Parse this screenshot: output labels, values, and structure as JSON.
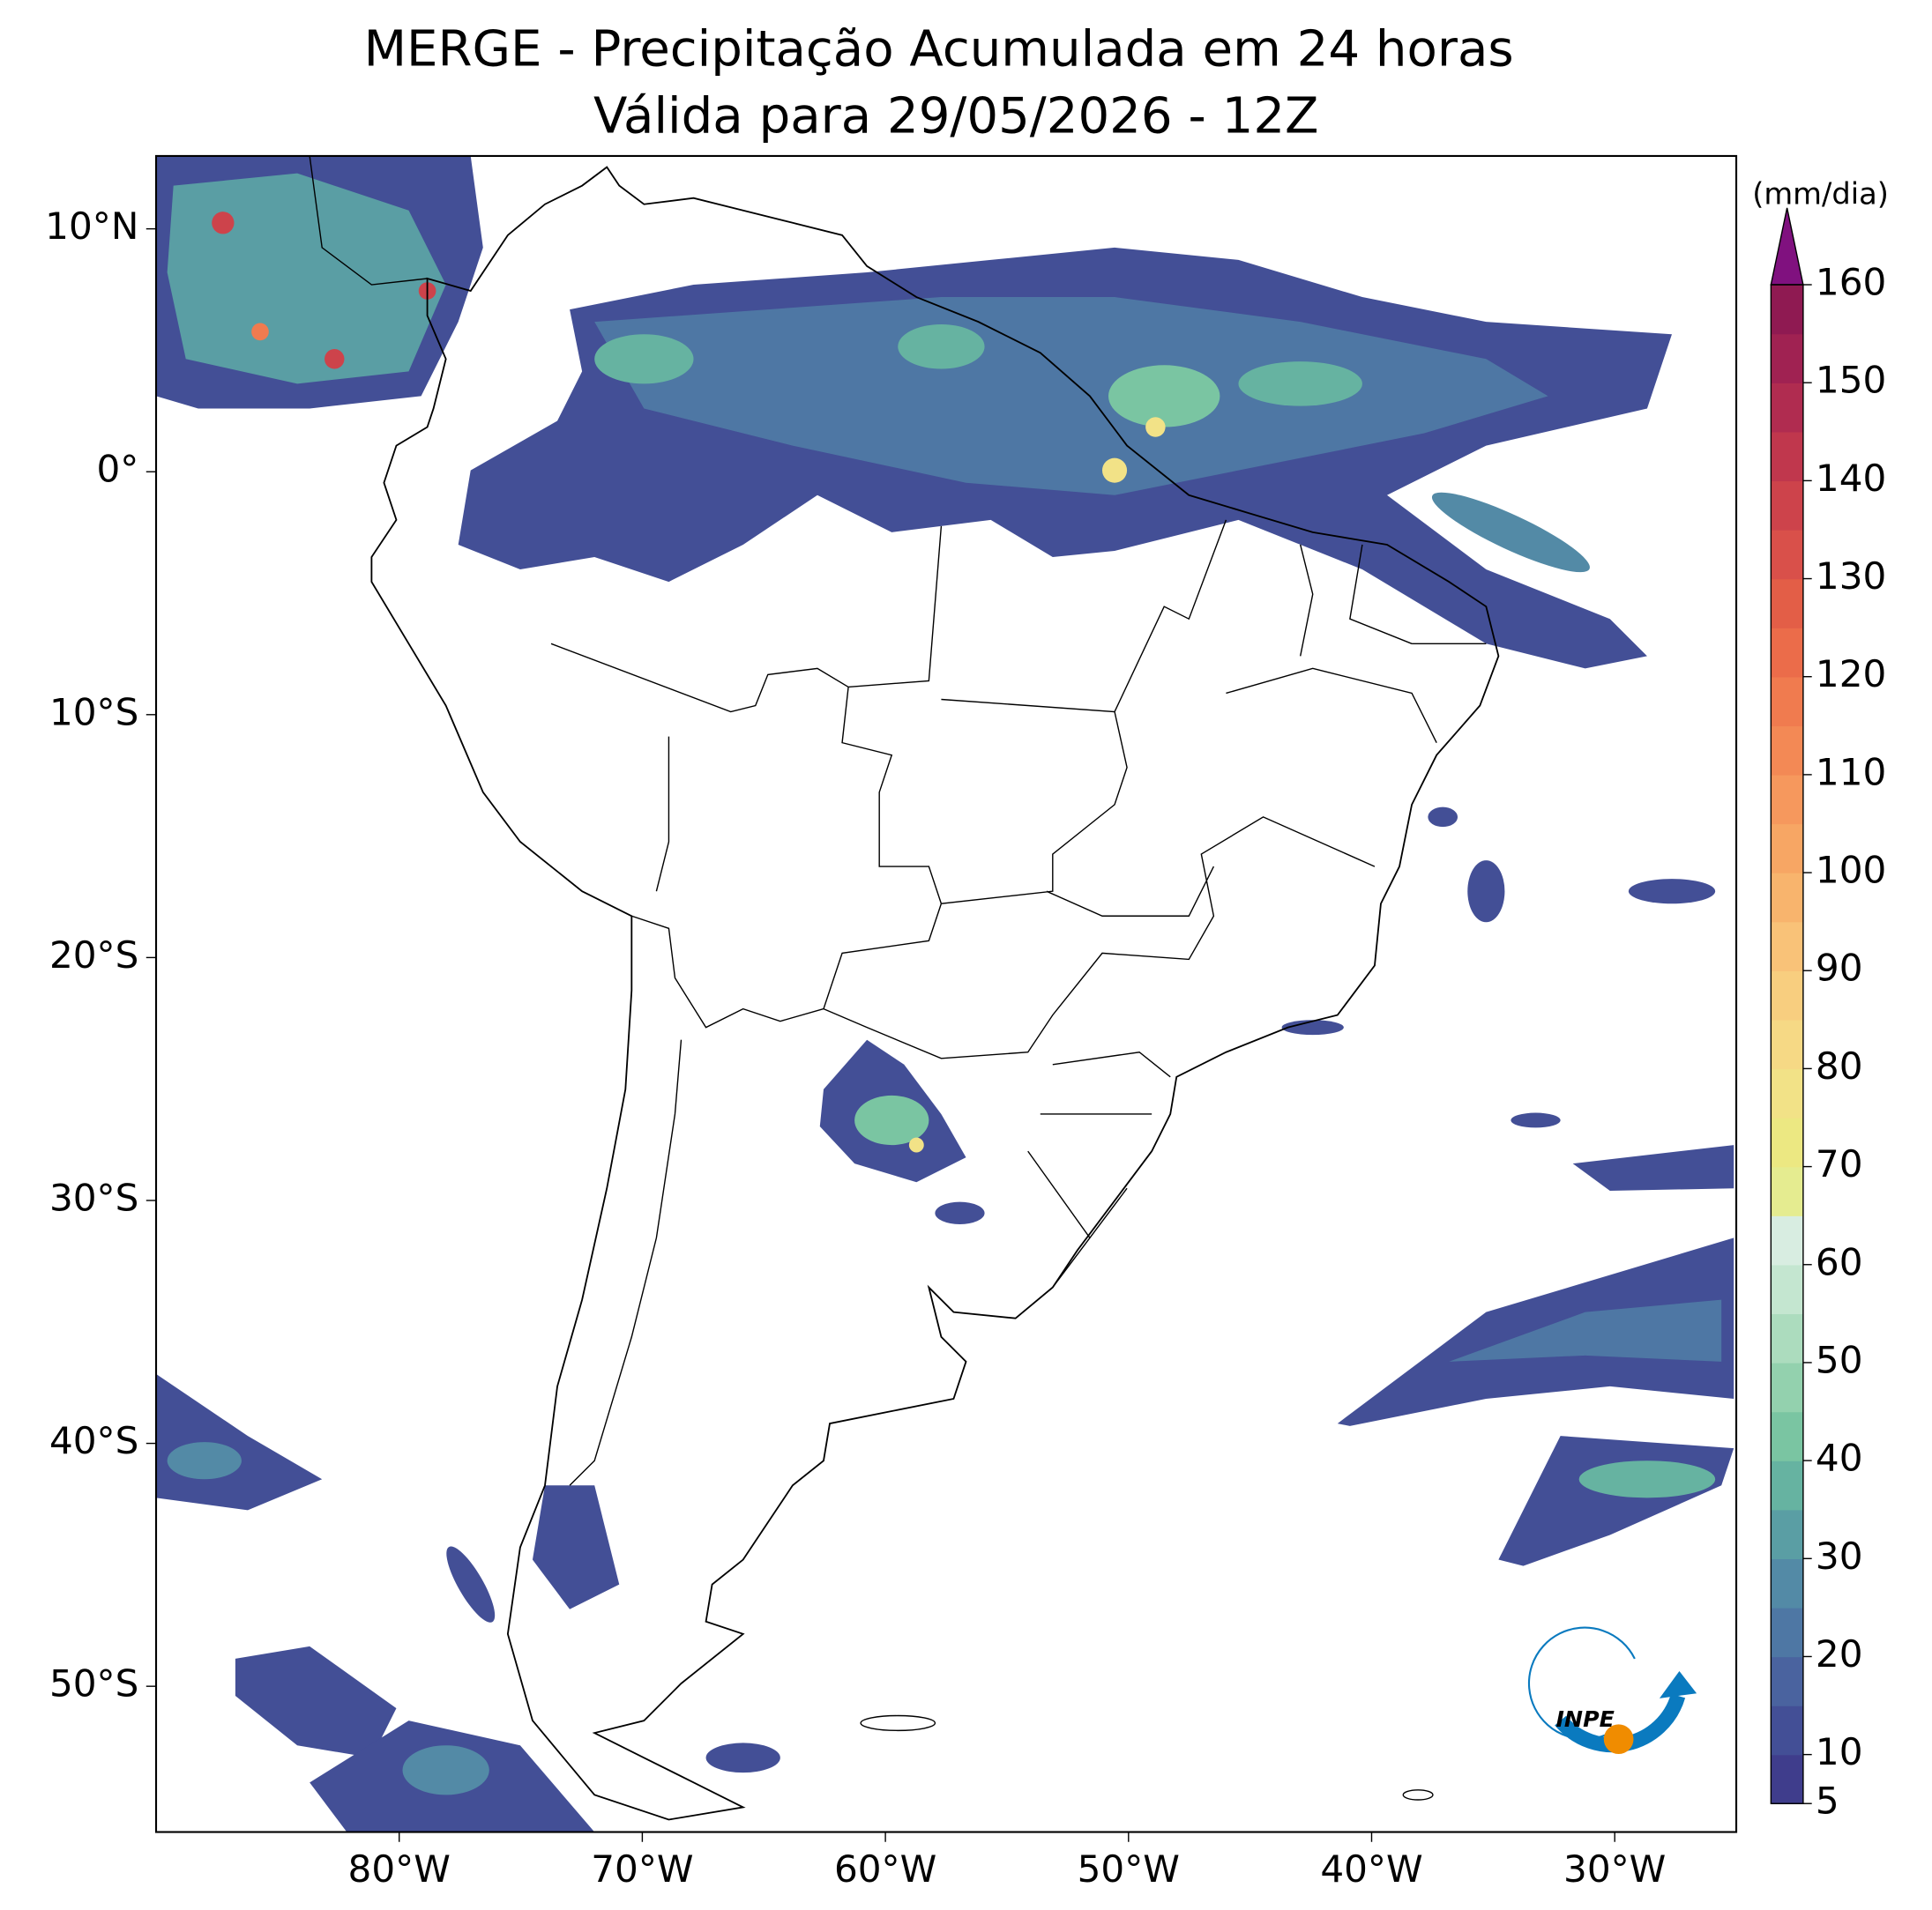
{
  "title": [
    "MERGE - Precipitação Acumulada em 24 horas",
    "Válida para 29/05/2026 - 12Z"
  ],
  "map": {
    "xlim": [
      -90,
      -25
    ],
    "ylim": [
      -56,
      13
    ],
    "xticks": [
      {
        "value": -80,
        "label": "80°W"
      },
      {
        "value": -70,
        "label": "70°W"
      },
      {
        "value": -60,
        "label": "60°W"
      },
      {
        "value": -50,
        "label": "50°W"
      },
      {
        "value": -40,
        "label": "40°W"
      },
      {
        "value": -30,
        "label": "30°W"
      }
    ],
    "yticks": [
      {
        "value": 10,
        "label": "10°N"
      },
      {
        "value": 0,
        "label": "0°"
      },
      {
        "value": -10,
        "label": "10°S"
      },
      {
        "value": -20,
        "label": "20°S"
      },
      {
        "value": -30,
        "label": "30°S"
      },
      {
        "value": -40,
        "label": "40°S"
      },
      {
        "value": -50,
        "label": "50°S"
      }
    ]
  },
  "colorbar": {
    "label": "(mm/dia)",
    "lim": [
      5,
      160
    ],
    "ticks": [
      5,
      10,
      20,
      30,
      40,
      50,
      60,
      70,
      80,
      90,
      100,
      110,
      120,
      130,
      140,
      150,
      160
    ],
    "levels": [
      5,
      10,
      15,
      20,
      25,
      30,
      35,
      40,
      45,
      50,
      55,
      60,
      65,
      70,
      75,
      80,
      85,
      90,
      95,
      100,
      105,
      110,
      115,
      120,
      125,
      130,
      135,
      140,
      145,
      150,
      155,
      160
    ],
    "colors": [
      "#3f3d8c",
      "#434f96",
      "#4a639f",
      "#4e77a4",
      "#538aa6",
      "#5a9ea4",
      "#66b3a1",
      "#7ac5a2",
      "#93d1ae",
      "#acdcbe",
      "#c4e6d0",
      "#d8ede1",
      "#e5ec90",
      "#ece882",
      "#f2e287",
      "#f6d985",
      "#f8ce7f",
      "#f9c278",
      "#f8b46d",
      "#f7a664",
      "#f6985d",
      "#f38955",
      "#f07b4f",
      "#eb6c4a",
      "#e35e47",
      "#d9504a",
      "#cd434b",
      "#c0374d",
      "#b02c50",
      "#a02252",
      "#8f1a52"
    ],
    "extend_color": "#80117f"
  },
  "logo": {
    "text": "INPE"
  }
}
